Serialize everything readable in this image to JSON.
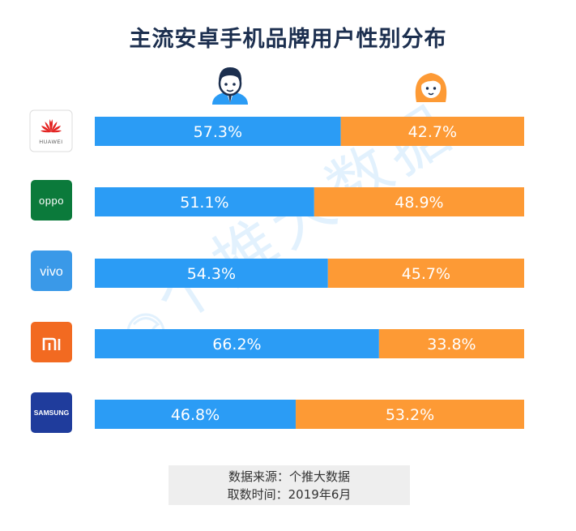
{
  "title": "主流安卓手机品牌用户性别分布",
  "legend": {
    "male_icon": "male-avatar-icon",
    "female_icon": "female-avatar-icon"
  },
  "watermark": "个推大数据",
  "source": {
    "line1": "数据来源：个推大数据",
    "line2": "取数时间：2019年6月"
  },
  "colors": {
    "male": "#2b9cf5",
    "female": "#fd9a35",
    "title": "#1c2f4f"
  },
  "chart_data": {
    "type": "bar",
    "stacked": true,
    "orientation": "horizontal",
    "categories": [
      "HUAWEI",
      "OPPO",
      "vivo",
      "MI",
      "SAMSUNG"
    ],
    "series": [
      {
        "values": [
          57.3,
          51.1,
          54.3,
          66.2,
          46.8
        ]
      },
      {
        "values": [
          42.7,
          48.9,
          45.7,
          33.8,
          53.2
        ]
      }
    ],
    "labels": [
      [
        "57.3%",
        "42.7%"
      ],
      [
        "51.1%",
        "48.9%"
      ],
      [
        "54.3%",
        "45.7%"
      ],
      [
        "66.2%",
        "33.8%"
      ],
      [
        "46.8%",
        "53.2%"
      ]
    ],
    "xlim": [
      0,
      100
    ],
    "grid": false
  }
}
